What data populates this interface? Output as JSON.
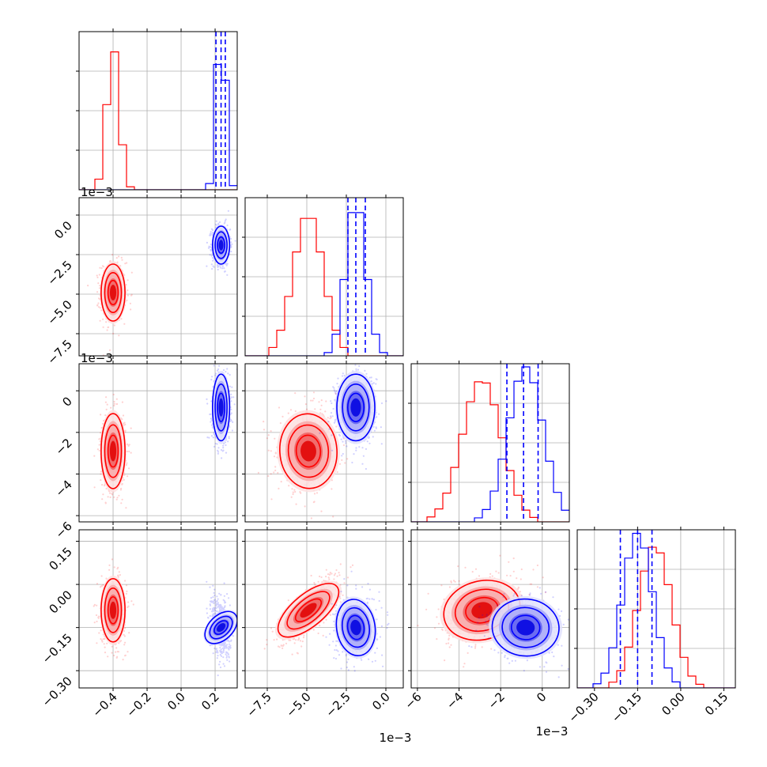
{
  "chart_data": {
    "type": "corner",
    "title": "",
    "grid": true,
    "series": [
      {
        "color": "#ff0000",
        "mean": [
          -0.4,
          -0.0049,
          -0.0029,
          -0.09
        ],
        "sd": [
          0.035,
          0.0009,
          0.0009,
          0.055
        ]
      },
      {
        "color": "#0000ff",
        "mean": [
          0.235,
          -0.0019,
          -0.0008,
          -0.15
        ],
        "sd": [
          0.025,
          0.0006,
          0.0008,
          0.05
        ]
      }
    ],
    "correlations": [
      {
        "params": [
          1,
          2
        ],
        "red": 0.05,
        "blue": 0.0
      },
      {
        "params": [
          1,
          3
        ],
        "red": 0.75,
        "blue": 0.1
      },
      {
        "params": [
          2,
          3
        ],
        "red": 0.3,
        "blue": -0.1
      },
      {
        "params": [
          0,
          3
        ],
        "red": 0.0,
        "blue": -0.3
      }
    ],
    "quantile_lines": [
      [
        0.205,
        0.235,
        0.26
      ],
      [
        -0.0024,
        -0.0019,
        -0.0013
      ],
      [
        -0.0017,
        -0.0009,
        -0.0002
      ],
      [
        -0.21,
        -0.15,
        -0.1
      ]
    ],
    "ranges": [
      [
        -0.6,
        0.33
      ],
      [
        -0.0089,
        0.0011
      ],
      [
        -0.0063,
        0.0013
      ],
      [
        -0.36,
        0.19
      ]
    ],
    "tick_values": [
      [
        -0.4,
        -0.2,
        0.0,
        0.2
      ],
      [
        -0.0075,
        -0.005,
        -0.0025,
        0.0
      ],
      [
        -0.006,
        -0.004,
        -0.002,
        0.0
      ],
      [
        -0.3,
        -0.15,
        0.0,
        0.15
      ]
    ],
    "tick_labels": [
      [
        "−0.4",
        "−0.2",
        "0.0",
        "0.2"
      ],
      [
        "−7.5",
        "−5.0",
        "−2.5",
        "0.0"
      ],
      [
        "−6",
        "−4",
        "−2",
        "0"
      ],
      [
        "−0.30",
        "−0.15",
        "0.00",
        "0.15"
      ]
    ],
    "axis_offset_labels": [
      "",
      "1e−3",
      "1e−3",
      ""
    ],
    "xlabels": [
      "",
      "",
      "",
      ""
    ],
    "ylabels": [
      "",
      "",
      "",
      ""
    ]
  }
}
